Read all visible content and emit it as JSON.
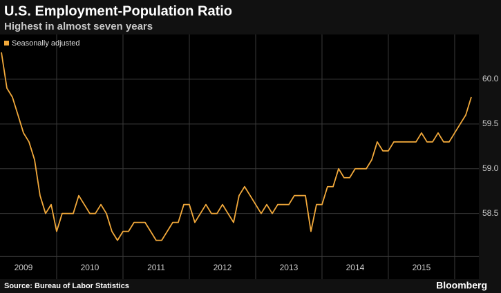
{
  "chart_data": {
    "type": "line",
    "title": "U.S. Employment-Population Ratio",
    "subtitle": "Highest in almost seven years",
    "source": "Source: Bureau of Labor Statistics",
    "brand": "Bloomberg",
    "x": [
      2009.167,
      2009.25,
      2009.333,
      2009.417,
      2009.5,
      2009.583,
      2009.667,
      2009.75,
      2009.833,
      2009.917,
      2010,
      2010.083,
      2010.167,
      2010.25,
      2010.333,
      2010.417,
      2010.5,
      2010.583,
      2010.667,
      2010.75,
      2010.833,
      2010.917,
      2011,
      2011.083,
      2011.167,
      2011.25,
      2011.333,
      2011.417,
      2011.5,
      2011.583,
      2011.667,
      2011.75,
      2011.833,
      2011.917,
      2012,
      2012.083,
      2012.167,
      2012.25,
      2012.333,
      2012.417,
      2012.5,
      2012.583,
      2012.667,
      2012.75,
      2012.833,
      2012.917,
      2013,
      2013.083,
      2013.167,
      2013.25,
      2013.333,
      2013.417,
      2013.5,
      2013.583,
      2013.667,
      2013.75,
      2013.833,
      2013.917,
      2014,
      2014.083,
      2014.167,
      2014.25,
      2014.333,
      2014.417,
      2014.5,
      2014.583,
      2014.667,
      2014.75,
      2014.833,
      2014.917,
      2015,
      2015.083,
      2015.167,
      2015.25,
      2015.333,
      2015.417,
      2015.5,
      2015.583,
      2015.667,
      2015.75,
      2015.833,
      2015.917,
      2016,
      2016.083,
      2016.167,
      2016.25
    ],
    "series": [
      {
        "name": "Seasonally adjusted",
        "color": "#f2a93b",
        "values": [
          60.3,
          59.9,
          59.8,
          59.6,
          59.4,
          59.3,
          59.1,
          58.7,
          58.5,
          58.6,
          58.3,
          58.5,
          58.5,
          58.5,
          58.7,
          58.6,
          58.5,
          58.5,
          58.6,
          58.5,
          58.3,
          58.2,
          58.3,
          58.3,
          58.4,
          58.4,
          58.4,
          58.3,
          58.2,
          58.2,
          58.3,
          58.4,
          58.4,
          58.6,
          58.6,
          58.4,
          58.5,
          58.6,
          58.5,
          58.5,
          58.6,
          58.5,
          58.4,
          58.7,
          58.8,
          58.7,
          58.6,
          58.5,
          58.6,
          58.5,
          58.6,
          58.6,
          58.6,
          58.7,
          58.7,
          58.7,
          58.3,
          58.6,
          58.6,
          58.8,
          58.8,
          59.0,
          58.9,
          58.9,
          59.0,
          59.0,
          59.0,
          59.1,
          59.3,
          59.2,
          59.2,
          59.3,
          59.3,
          59.3,
          59.3,
          59.3,
          59.4,
          59.3,
          59.3,
          59.4,
          59.3,
          59.3,
          59.4,
          59.5,
          59.6,
          59.8
        ]
      }
    ],
    "xlim": [
      2009.146,
      2016.365
    ],
    "xticks": [
      {
        "value": 2009.5,
        "label": "2009"
      },
      {
        "value": 2010.5,
        "label": "2010"
      },
      {
        "value": 2011.5,
        "label": "2011"
      },
      {
        "value": 2012.5,
        "label": "2012"
      },
      {
        "value": 2013.5,
        "label": "2013"
      },
      {
        "value": 2014.5,
        "label": "2014"
      },
      {
        "value": 2015.5,
        "label": "2015"
      }
    ],
    "ylim": [
      58.02,
      60.5
    ],
    "yticks": [
      58.5,
      {
        "value": 59,
        "label": "59.0"
      },
      59.5,
      {
        "value": 60,
        "label": "60.0"
      }
    ],
    "grid": true,
    "legend": "top-left"
  }
}
